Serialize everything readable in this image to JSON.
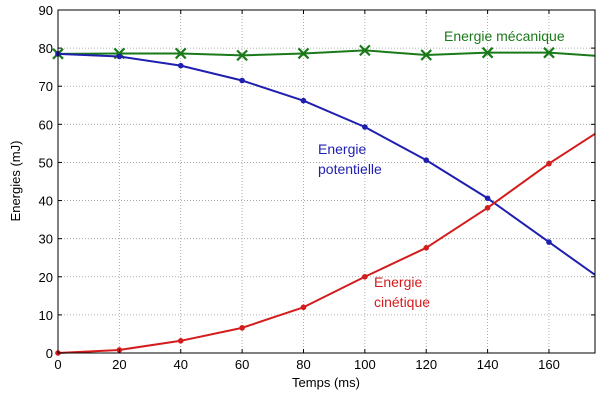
{
  "chart_data": {
    "type": "line",
    "xlabel": "Temps (ms)",
    "ylabel": "Energies (mJ)",
    "xlim": [
      0,
      175
    ],
    "ylim": [
      0,
      90
    ],
    "xticks": [
      0,
      20,
      40,
      60,
      80,
      100,
      120,
      140,
      160
    ],
    "yticks": [
      0,
      10,
      20,
      30,
      40,
      50,
      60,
      70,
      80,
      90
    ],
    "grid": "dotted",
    "series": [
      {
        "name": "Energie mécanique",
        "color": "#1a7a1a",
        "marker": "x",
        "x": [
          0,
          20,
          40,
          60,
          80,
          100,
          120,
          140,
          160,
          175
        ],
        "y": [
          78.5,
          78.6,
          78.6,
          78.1,
          78.6,
          79.4,
          78.2,
          78.8,
          78.8,
          78.0
        ],
        "marked": [
          true,
          true,
          true,
          true,
          true,
          true,
          true,
          true,
          true,
          false
        ]
      },
      {
        "name": "Energie potentielle",
        "color": "#1f1fb0",
        "marker": "dot",
        "x": [
          0,
          20,
          40,
          60,
          80,
          100,
          120,
          140,
          160,
          175
        ],
        "y": [
          78.5,
          77.8,
          75.4,
          71.5,
          66.2,
          59.3,
          50.6,
          40.6,
          29.1,
          20.5
        ],
        "marked": [
          true,
          true,
          true,
          true,
          true,
          true,
          true,
          true,
          true,
          false
        ]
      },
      {
        "name": "Energie cinétique",
        "color": "#d41c1c",
        "marker": "dot",
        "x": [
          0,
          20,
          40,
          60,
          80,
          100,
          120,
          140,
          160,
          175
        ],
        "y": [
          0,
          0.8,
          3.2,
          6.6,
          12.0,
          20.0,
          27.6,
          38.1,
          49.7,
          57.5
        ],
        "marked": [
          true,
          true,
          true,
          true,
          true,
          true,
          true,
          true,
          true,
          false
        ]
      }
    ],
    "annotations": [
      {
        "id": "meca",
        "lines": [
          "Energie mécanique"
        ],
        "color": "#1a7a1a"
      },
      {
        "id": "pot",
        "lines": [
          "Energie",
          "potentielle"
        ],
        "color": "#1f1fb0"
      },
      {
        "id": "cin",
        "lines": [
          "Energie",
          "cinétique"
        ],
        "color": "#d41c1c"
      }
    ]
  }
}
